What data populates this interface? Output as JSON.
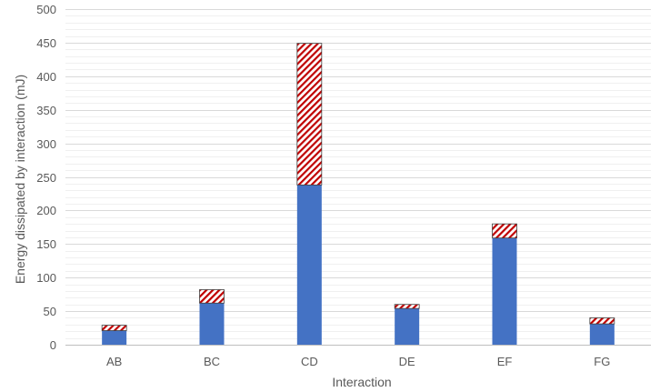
{
  "chart_data": {
    "type": "bar",
    "stacked": true,
    "categories": [
      "AB",
      "BC",
      "CD",
      "DE",
      "EF",
      "FG"
    ],
    "series": [
      {
        "values": [
          21,
          62,
          238,
          54,
          159,
          31
        ],
        "color": "#4472C4",
        "pattern": "solid"
      },
      {
        "values": [
          8,
          20,
          211,
          6,
          21,
          9
        ],
        "color": "#C00000",
        "pattern": "diagonal-hatch"
      }
    ],
    "title": "",
    "xlabel": "Interaction",
    "ylabel": "Energy dissipated by interaction (mJ)",
    "ylim": [
      0,
      500
    ],
    "y_ticks": [
      0,
      50,
      100,
      150,
      200,
      250,
      300,
      350,
      400,
      450,
      500
    ],
    "grid": {
      "major": true,
      "minor": true,
      "minor_step": 10
    },
    "legend": "none"
  }
}
